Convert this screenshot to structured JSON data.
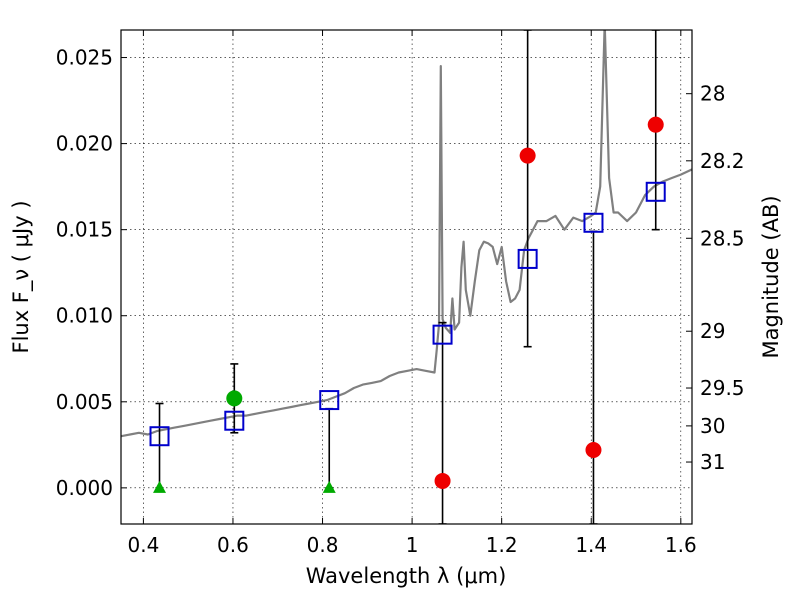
{
  "chart_data": {
    "type": "scatter",
    "xlabel": "Wavelength  λ (μm)",
    "ylabel": "Flux  F_ν  ( μJy )",
    "ylabel_right": "Magnitude (AB)",
    "xlim": [
      0.35,
      1.625
    ],
    "ylim": [
      -0.0021,
      0.0266
    ],
    "grid": true,
    "x_ticks": [
      {
        "value": 0.4,
        "label": "0.4"
      },
      {
        "value": 0.6,
        "label": "0.6"
      },
      {
        "value": 0.8,
        "label": "0.8"
      },
      {
        "value": 1.0,
        "label": "1"
      },
      {
        "value": 1.2,
        "label": "1.2"
      },
      {
        "value": 1.4,
        "label": "1.4"
      },
      {
        "value": 1.6,
        "label": "1.6"
      }
    ],
    "y_ticks": [
      {
        "value": 0.0,
        "label": "0.000"
      },
      {
        "value": 0.005,
        "label": "0.005"
      },
      {
        "value": 0.01,
        "label": "0.010"
      },
      {
        "value": 0.015,
        "label": "0.015"
      },
      {
        "value": 0.02,
        "label": "0.020"
      },
      {
        "value": 0.025,
        "label": "0.025"
      }
    ],
    "mag_ticks": [
      {
        "flux": 0.0229,
        "label": "28"
      },
      {
        "flux": 0.019,
        "label": "28.2"
      },
      {
        "flux": 0.0145,
        "label": "28.5"
      },
      {
        "flux": 0.0091,
        "label": "29"
      },
      {
        "flux": 0.0058,
        "label": "29.5"
      },
      {
        "flux": 0.0036,
        "label": "30"
      },
      {
        "flux": 0.0015,
        "label": "31"
      }
    ],
    "spectrum": {
      "color": "#808080",
      "points": [
        [
          0.35,
          0.003
        ],
        [
          0.37,
          0.0031
        ],
        [
          0.39,
          0.0032
        ],
        [
          0.41,
          0.0031
        ],
        [
          0.43,
          0.0033
        ],
        [
          0.45,
          0.0034
        ],
        [
          0.47,
          0.0035
        ],
        [
          0.49,
          0.0036
        ],
        [
          0.51,
          0.0037
        ],
        [
          0.53,
          0.0038
        ],
        [
          0.55,
          0.0039
        ],
        [
          0.57,
          0.004
        ],
        [
          0.59,
          0.0041
        ],
        [
          0.61,
          0.0042
        ],
        [
          0.63,
          0.0042
        ],
        [
          0.65,
          0.0043
        ],
        [
          0.67,
          0.0044
        ],
        [
          0.69,
          0.0045
        ],
        [
          0.71,
          0.0046
        ],
        [
          0.73,
          0.0047
        ],
        [
          0.75,
          0.0048
        ],
        [
          0.77,
          0.0049
        ],
        [
          0.79,
          0.005
        ],
        [
          0.81,
          0.0051
        ],
        [
          0.83,
          0.0053
        ],
        [
          0.85,
          0.0055
        ],
        [
          0.87,
          0.0058
        ],
        [
          0.89,
          0.006
        ],
        [
          0.91,
          0.0061
        ],
        [
          0.93,
          0.0062
        ],
        [
          0.95,
          0.0065
        ],
        [
          0.97,
          0.0067
        ],
        [
          0.99,
          0.0068
        ],
        [
          1.01,
          0.0069
        ],
        [
          1.03,
          0.0068
        ],
        [
          1.05,
          0.0067
        ],
        [
          1.055,
          0.008
        ],
        [
          1.06,
          0.0095
        ],
        [
          1.064,
          0.0245
        ],
        [
          1.068,
          0.0098
        ],
        [
          1.075,
          0.0093
        ],
        [
          1.085,
          0.009
        ],
        [
          1.09,
          0.011
        ],
        [
          1.095,
          0.0092
        ],
        [
          1.105,
          0.0096
        ],
        [
          1.11,
          0.0128
        ],
        [
          1.115,
          0.0143
        ],
        [
          1.12,
          0.0115
        ],
        [
          1.13,
          0.01
        ],
        [
          1.14,
          0.012
        ],
        [
          1.15,
          0.0138
        ],
        [
          1.16,
          0.0143
        ],
        [
          1.17,
          0.0142
        ],
        [
          1.18,
          0.014
        ],
        [
          1.19,
          0.013
        ],
        [
          1.2,
          0.014
        ],
        [
          1.21,
          0.012
        ],
        [
          1.22,
          0.0108
        ],
        [
          1.23,
          0.011
        ],
        [
          1.24,
          0.0115
        ],
        [
          1.25,
          0.0138
        ],
        [
          1.26,
          0.0145
        ],
        [
          1.27,
          0.015
        ],
        [
          1.28,
          0.0155
        ],
        [
          1.3,
          0.0155
        ],
        [
          1.32,
          0.0158
        ],
        [
          1.34,
          0.015
        ],
        [
          1.36,
          0.0157
        ],
        [
          1.38,
          0.0155
        ],
        [
          1.4,
          0.0158
        ],
        [
          1.41,
          0.016
        ],
        [
          1.42,
          0.0175
        ],
        [
          1.43,
          0.027
        ],
        [
          1.44,
          0.018
        ],
        [
          1.45,
          0.016
        ],
        [
          1.46,
          0.016
        ],
        [
          1.48,
          0.0155
        ],
        [
          1.5,
          0.016
        ],
        [
          1.52,
          0.017
        ],
        [
          1.54,
          0.0175
        ],
        [
          1.56,
          0.0178
        ],
        [
          1.58,
          0.018
        ],
        [
          1.6,
          0.0182
        ],
        [
          1.625,
          0.0185
        ]
      ]
    },
    "model_points": {
      "color": "#0000cc",
      "points": [
        [
          0.436,
          0.003
        ],
        [
          0.603,
          0.0039
        ],
        [
          0.815,
          0.0051
        ],
        [
          1.068,
          0.0089
        ],
        [
          1.258,
          0.0133
        ],
        [
          1.405,
          0.0154
        ],
        [
          1.544,
          0.0172
        ]
      ]
    },
    "red_points": {
      "color": "#ee0000",
      "points": [
        [
          1.068,
          0.0004
        ],
        [
          1.258,
          0.0193
        ],
        [
          1.405,
          0.0022
        ],
        [
          1.544,
          0.0211
        ]
      ]
    },
    "green_points": {
      "color": "#00aa00",
      "circles": [
        [
          0.603,
          0.0052
        ]
      ],
      "triangles": [
        [
          0.436,
          0.0
        ],
        [
          0.815,
          0.0
        ]
      ]
    },
    "error_bars": [
      {
        "x": 0.436,
        "low": 0.0,
        "high": 0.0049
      },
      {
        "x": 0.603,
        "low": 0.0032,
        "high": 0.0072
      },
      {
        "x": 0.815,
        "low": 0.0,
        "high": 0.0046
      },
      {
        "x": 1.068,
        "low": -0.0021,
        "high": 0.0096
      },
      {
        "x": 1.258,
        "low": 0.0082,
        "high": 0.0266
      },
      {
        "x": 1.405,
        "low": -0.0021,
        "high": 0.0149
      },
      {
        "x": 1.544,
        "low": 0.015,
        "high": 0.0266
      }
    ]
  }
}
